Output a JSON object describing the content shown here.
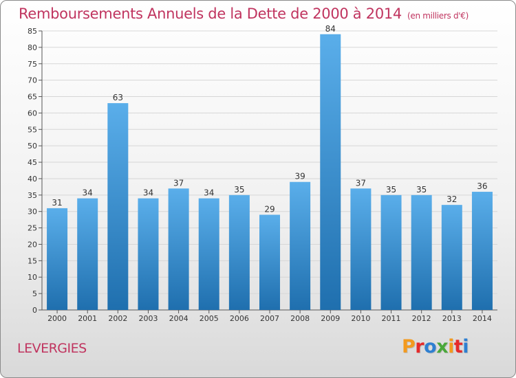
{
  "title": "Remboursements Annuels de la Dette de 2000 à 2014",
  "unit": "(en milliers d'€)",
  "commune": "LEVERGIES",
  "logo": {
    "text": "Proxiti",
    "colors": [
      "#f39a1e",
      "#e52a2a",
      "#2e7fd1",
      "#4aa83a",
      "#f39a1e",
      "#e52a2a",
      "#2e7fd1"
    ]
  },
  "colors": {
    "title": "#c0345f",
    "bar_top": "#5aaeea",
    "bar_bottom": "#1f6fae",
    "grid": "#d6d6d6"
  },
  "chart_data": {
    "type": "bar",
    "title": "Remboursements Annuels de la Dette de 2000 à 2014",
    "categories": [
      "2000",
      "2001",
      "2002",
      "2003",
      "2004",
      "2005",
      "2006",
      "2007",
      "2008",
      "2009",
      "2010",
      "2011",
      "2012",
      "2013",
      "2014"
    ],
    "values": [
      31,
      34,
      63,
      34,
      37,
      34,
      35,
      29,
      39,
      84,
      37,
      35,
      35,
      32,
      36
    ],
    "ylim": [
      0,
      85
    ],
    "yticks": [
      0,
      5,
      10,
      15,
      20,
      25,
      30,
      35,
      40,
      45,
      50,
      55,
      60,
      65,
      70,
      75,
      80,
      85
    ],
    "grid": true,
    "xlabel": "",
    "ylabel": ""
  }
}
